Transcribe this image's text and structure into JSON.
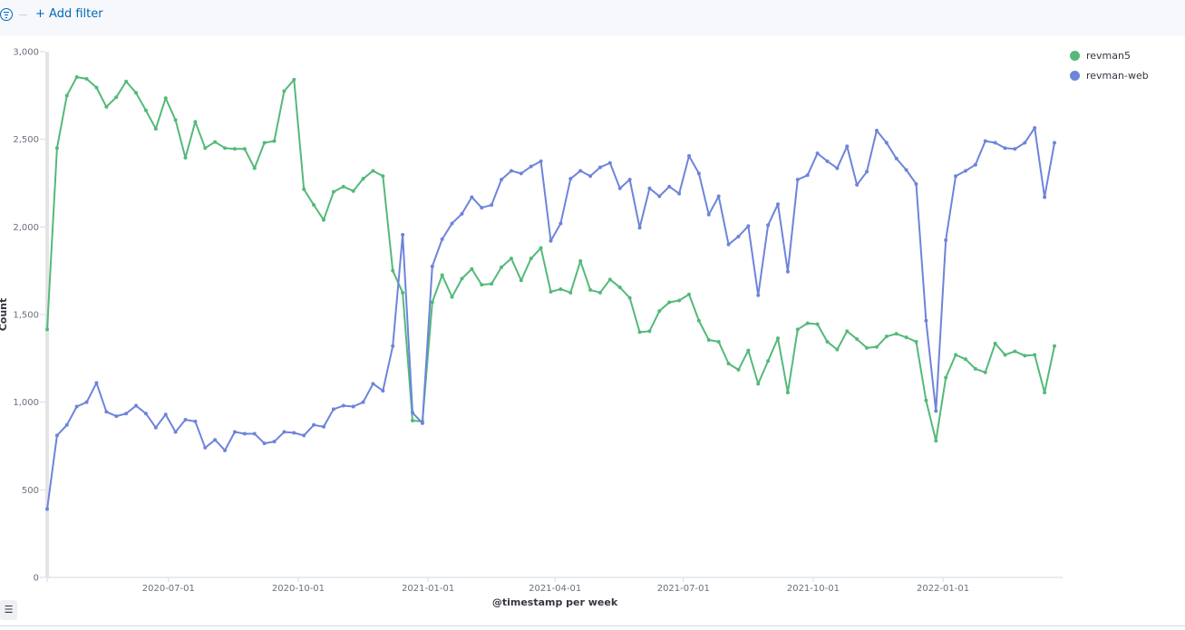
{
  "filter_bar": {
    "add_filter_label": "+ Add filter",
    "icon": "filter-icon"
  },
  "legend_toggle_icon": "list-icon",
  "colors": {
    "revman5": "#54b97a",
    "revman-web": "#6d84da",
    "accent": "#006bb8"
  },
  "chart_data": {
    "type": "line",
    "xlabel": "@timestamp per week",
    "ylabel": "Count",
    "ylim": [
      0,
      3000
    ],
    "y_ticks": [
      {
        "v": 0,
        "label": "0"
      },
      {
        "v": 500,
        "label": "500"
      },
      {
        "v": 1000,
        "label": "1,000"
      },
      {
        "v": 1500,
        "label": "1,500"
      },
      {
        "v": 2000,
        "label": "2,000"
      },
      {
        "v": 2500,
        "label": "2,500"
      },
      {
        "v": 3000,
        "label": "3,000"
      }
    ],
    "x_ticks": [
      "2020-07-01",
      "2020-10-01",
      "2021-01-01",
      "2021-04-01",
      "2021-07-01",
      "2021-10-01",
      "2022-01-01"
    ],
    "x_start": "2020-04-06",
    "x_interval_days": 7,
    "legend_position": "top-right",
    "grid": false,
    "series": [
      {
        "name": "revman5",
        "values": [
          1415,
          2450,
          2750,
          2855,
          2845,
          2795,
          2685,
          2740,
          2830,
          2765,
          2665,
          2560,
          2735,
          2610,
          2395,
          2600,
          2450,
          2485,
          2450,
          2445,
          2445,
          2335,
          2480,
          2490,
          2775,
          2840,
          2215,
          2125,
          2040,
          2200,
          2230,
          2205,
          2275,
          2320,
          2290,
          1750,
          1625,
          895,
          890,
          1570,
          1725,
          1600,
          1705,
          1760,
          1670,
          1675,
          1770,
          1820,
          1695,
          1820,
          1880,
          1630,
          1645,
          1625,
          1805,
          1640,
          1625,
          1700,
          1655,
          1595,
          1400,
          1405,
          1520,
          1570,
          1580,
          1615,
          1465,
          1355,
          1345,
          1220,
          1185,
          1295,
          1105,
          1235,
          1365,
          1055,
          1415,
          1450,
          1445,
          1345,
          1300,
          1405,
          1360,
          1310,
          1315,
          1375,
          1390,
          1370,
          1345,
          1010,
          780,
          1140,
          1270,
          1245,
          1190,
          1170,
          1335,
          1270,
          1290,
          1265,
          1270,
          1055,
          1320
        ]
      },
      {
        "name": "revman-web",
        "values": [
          390,
          810,
          870,
          975,
          1000,
          1110,
          945,
          920,
          935,
          980,
          935,
          855,
          930,
          830,
          900,
          890,
          740,
          785,
          725,
          830,
          820,
          820,
          765,
          775,
          830,
          825,
          810,
          870,
          860,
          960,
          980,
          975,
          1000,
          1105,
          1065,
          1320,
          1955,
          940,
          880,
          1775,
          1930,
          2020,
          2075,
          2170,
          2110,
          2125,
          2270,
          2320,
          2305,
          2345,
          2375,
          1920,
          2020,
          2275,
          2320,
          2290,
          2340,
          2365,
          2220,
          2270,
          1995,
          2220,
          2175,
          2230,
          2190,
          2405,
          2305,
          2070,
          2175,
          1900,
          1945,
          2005,
          1610,
          2010,
          2130,
          1745,
          2270,
          2295,
          2420,
          2375,
          2335,
          2460,
          2240,
          2315,
          2550,
          2480,
          2390,
          2325,
          2245,
          1465,
          950,
          1925,
          2290,
          2320,
          2355,
          2490,
          2480,
          2450,
          2445,
          2480,
          2565,
          2170,
          2480
        ]
      }
    ]
  }
}
